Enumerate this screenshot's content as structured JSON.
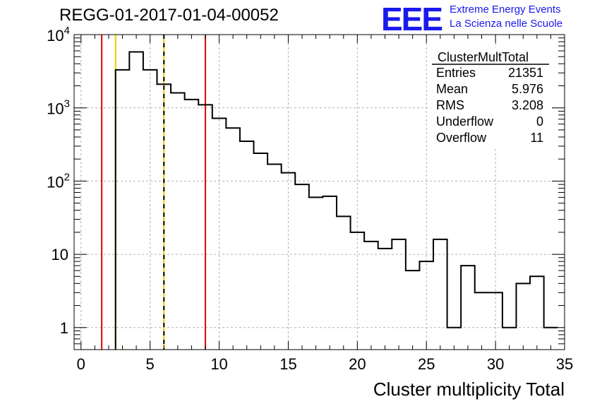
{
  "header": {
    "title": "REGG-01-2017-01-04-00052",
    "logo": "EEE",
    "logo_line1": "Extreme Energy Events",
    "logo_line2": "La Scienza nelle Scuole"
  },
  "stats": {
    "title": "ClusterMultTotal",
    "rows": [
      {
        "label": "Entries",
        "value": "21351"
      },
      {
        "label": "Mean",
        "value": "5.976"
      },
      {
        "label": "RMS",
        "value": "3.208"
      },
      {
        "label": "Underflow",
        "value": "0"
      },
      {
        "label": "Overflow",
        "value": "11"
      }
    ]
  },
  "chart_data": {
    "type": "histogram",
    "title": "REGG-01-2017-01-04-00052",
    "xlabel": "Cluster multiplicity Total",
    "ylabel": "",
    "xlim": [
      -0.5,
      35
    ],
    "ylim": [
      0.5,
      10000
    ],
    "yscale": "log",
    "grid": true,
    "x_ticks": [
      "0",
      "5",
      "10",
      "15",
      "20",
      "25",
      "30",
      "35"
    ],
    "y_ticks": [
      {
        "value": 1,
        "label": "1"
      },
      {
        "value": 10,
        "label": "10"
      },
      {
        "value": 100,
        "label": "10^2"
      },
      {
        "value": 1000,
        "label": "10^3"
      },
      {
        "value": 10000,
        "label": "10^4"
      }
    ],
    "bin_edges_start": 2.5,
    "bin_width": 1,
    "counts": [
      3300,
      5800,
      3300,
      2100,
      1600,
      1300,
      1100,
      720,
      530,
      350,
      240,
      170,
      130,
      90,
      60,
      62,
      33,
      20,
      15,
      12,
      16,
      6,
      8,
      16,
      1,
      7,
      3,
      3,
      1,
      4,
      5,
      1
    ],
    "vertical_lines": [
      {
        "x": 1.5,
        "color": "#e00000",
        "style": "solid"
      },
      {
        "x": 2.5,
        "color": "#f5c400",
        "style": "solid"
      },
      {
        "x": 6.0,
        "color": "#f5c400",
        "style": "solid"
      },
      {
        "x": 6.0,
        "color": "#000000",
        "style": "dashed"
      },
      {
        "x": 9.0,
        "color": "#e00000",
        "style": "solid"
      }
    ],
    "legend_position": "top-right"
  }
}
